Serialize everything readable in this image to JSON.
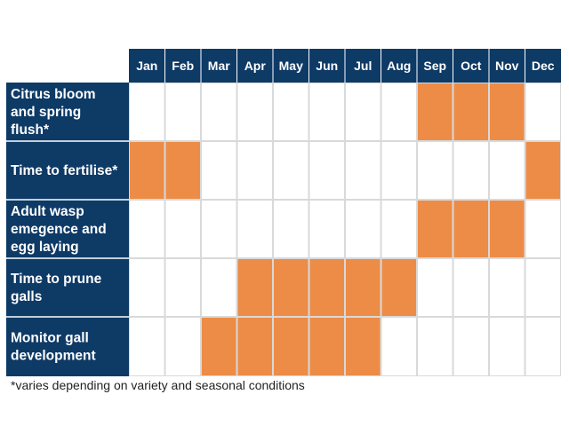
{
  "chart_data": {
    "type": "table",
    "columns": [
      "Jan",
      "Feb",
      "Mar",
      "Apr",
      "May",
      "Jun",
      "Jul",
      "Aug",
      "Sep",
      "Oct",
      "Nov",
      "Dec"
    ],
    "rows": [
      {
        "label_lines": [
          "Citrus bloom",
          "and spring",
          "flush*"
        ],
        "months": [
          "Sep",
          "Oct",
          "Nov"
        ]
      },
      {
        "label_lines": [
          "Time to fertilise*"
        ],
        "months": [
          "Jan",
          "Feb",
          "Dec"
        ]
      },
      {
        "label_lines": [
          "Adult wasp",
          "emegence and",
          "egg laying"
        ],
        "months": [
          "Sep",
          "Oct",
          "Nov"
        ]
      },
      {
        "label_lines": [
          "Time to prune",
          "galls"
        ],
        "months": [
          "Apr",
          "May",
          "Jun",
          "Jul",
          "Aug"
        ]
      },
      {
        "label_lines": [
          "Monitor gall",
          "development"
        ],
        "months": [
          "Mar",
          "Apr",
          "May",
          "Jun",
          "Jul"
        ]
      }
    ],
    "colors": {
      "header": "#0e3a66",
      "active": "#ed8c46",
      "grid": "#d9d9d9",
      "divider": "#ffffff"
    }
  },
  "footnote": "*varies depending on variety and seasonal conditions"
}
